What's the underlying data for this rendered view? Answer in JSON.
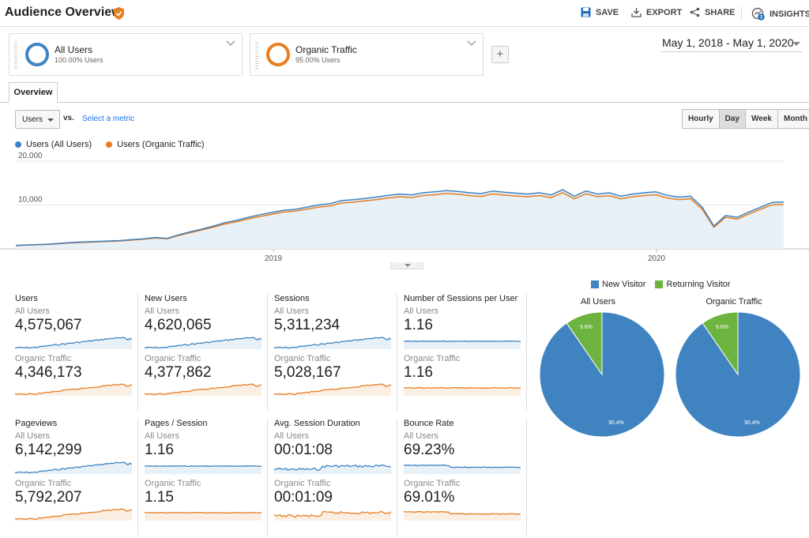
{
  "header": {
    "title": "Audience Overview",
    "save_label": "SAVE",
    "export_label": "EXPORT",
    "share_label": "SHARE",
    "insights_label": "INSIGHTS",
    "insights_badge": "3"
  },
  "segments": [
    {
      "name": "All Users",
      "sub": "100.00% Users",
      "color": "#3f84c0"
    },
    {
      "name": "Organic Traffic",
      "sub": "95.00% Users",
      "color": "#e67e22"
    }
  ],
  "add_segment_label": "+",
  "date_range": "May 1, 2018 - May 1, 2020",
  "tabs": [
    {
      "label": "Overview"
    }
  ],
  "controls": {
    "metric_label": "Users",
    "vs_label": "vs.",
    "select_metric_label": "Select a metric",
    "granularity": [
      {
        "label": "Hourly",
        "active": false
      },
      {
        "label": "Day",
        "active": true
      },
      {
        "label": "Week",
        "active": false
      },
      {
        "label": "Month",
        "active": false
      }
    ]
  },
  "chart_data": {
    "type": "line",
    "series": [
      {
        "name": "Users (All Users)",
        "color": "#3f84c0",
        "values": [
          800,
          900,
          1000,
          1100,
          1300,
          1500,
          1600,
          1700,
          1800,
          1900,
          2100,
          2300,
          2600,
          2400,
          3200,
          3900,
          4500,
          5200,
          6000,
          6500,
          7200,
          7800,
          8300,
          8800,
          9000,
          9500,
          10000,
          10300,
          11000,
          11200,
          11500,
          11800,
          12200,
          12500,
          12300,
          12800,
          13000,
          13300,
          13100,
          12800,
          12600,
          13200,
          12900,
          12700,
          12500,
          12800,
          12300,
          13500,
          12000,
          13200,
          12500,
          12800,
          12000,
          12500,
          12800,
          13000,
          12200,
          11800,
          12000,
          9500,
          5200,
          7600,
          7200,
          8400,
          9500,
          10600,
          10700
        ]
      },
      {
        "name": "Users (Organic Traffic)",
        "color": "#e67e22",
        "values": [
          750,
          850,
          950,
          1050,
          1250,
          1400,
          1500,
          1600,
          1700,
          1800,
          2000,
          2200,
          2450,
          2300,
          3050,
          3700,
          4300,
          4950,
          5700,
          6200,
          6850,
          7400,
          7900,
          8400,
          8600,
          9050,
          9500,
          9800,
          10450,
          10650,
          10950,
          11200,
          11600,
          11900,
          11700,
          12150,
          12350,
          12650,
          12450,
          12150,
          11950,
          12550,
          12250,
          12050,
          11900,
          12150,
          11700,
          12800,
          11400,
          12550,
          11900,
          12150,
          11400,
          11900,
          12150,
          12350,
          11600,
          11200,
          11400,
          9000,
          4900,
          7200,
          6800,
          7950,
          9000,
          10050,
          10150
        ]
      }
    ],
    "y_ticks": [
      "10,000",
      "20,000"
    ],
    "x_ticks": [
      "2019",
      "2020"
    ],
    "ylim": [
      0,
      20000
    ]
  },
  "metrics": [
    {
      "title": "Users",
      "seg1": "All Users",
      "val1": "4,575,067",
      "seg2": "Organic Traffic",
      "val2": "4,346,173",
      "kind": "growth"
    },
    {
      "title": "New Users",
      "seg1": "All Users",
      "val1": "4,620,065",
      "seg2": "Organic Traffic",
      "val2": "4,377,862",
      "kind": "growth"
    },
    {
      "title": "Sessions",
      "seg1": "All Users",
      "val1": "5,311,234",
      "seg2": "Organic Traffic",
      "val2": "5,028,167",
      "kind": "growth"
    },
    {
      "title": "Number of Sessions per User",
      "seg1": "All Users",
      "val1": "1.16",
      "seg2": "Organic Traffic",
      "val2": "1.16",
      "kind": "flat"
    },
    {
      "title": "Pageviews",
      "seg1": "All Users",
      "val1": "6,142,299",
      "seg2": "Organic Traffic",
      "val2": "5,792,207",
      "kind": "growth"
    },
    {
      "title": "Pages / Session",
      "seg1": "All Users",
      "val1": "1.16",
      "seg2": "Organic Traffic",
      "val2": "1.15",
      "kind": "flat"
    },
    {
      "title": "Avg. Session Duration",
      "seg1": "All Users",
      "val1": "00:01:08",
      "seg2": "Organic Traffic",
      "val2": "00:01:09",
      "kind": "noisy"
    },
    {
      "title": "Bounce Rate",
      "seg1": "All Users",
      "val1": "69.23%",
      "seg2": "Organic Traffic",
      "val2": "69.01%",
      "kind": "step"
    }
  ],
  "pies": {
    "legend": [
      {
        "label": "New Visitor",
        "color": "#3f84c0"
      },
      {
        "label": "Returning Visitor",
        "color": "#6db33f"
      }
    ],
    "charts": [
      {
        "title": "All Users",
        "new_label": "90.4%",
        "returning_label": "9.6%",
        "new_value": 90.4,
        "returning_value": 9.6
      },
      {
        "title": "Organic Traffic",
        "new_label": "90.4%",
        "returning_label": "9.6%",
        "new_value": 90.4,
        "returning_value": 9.6
      }
    ]
  }
}
